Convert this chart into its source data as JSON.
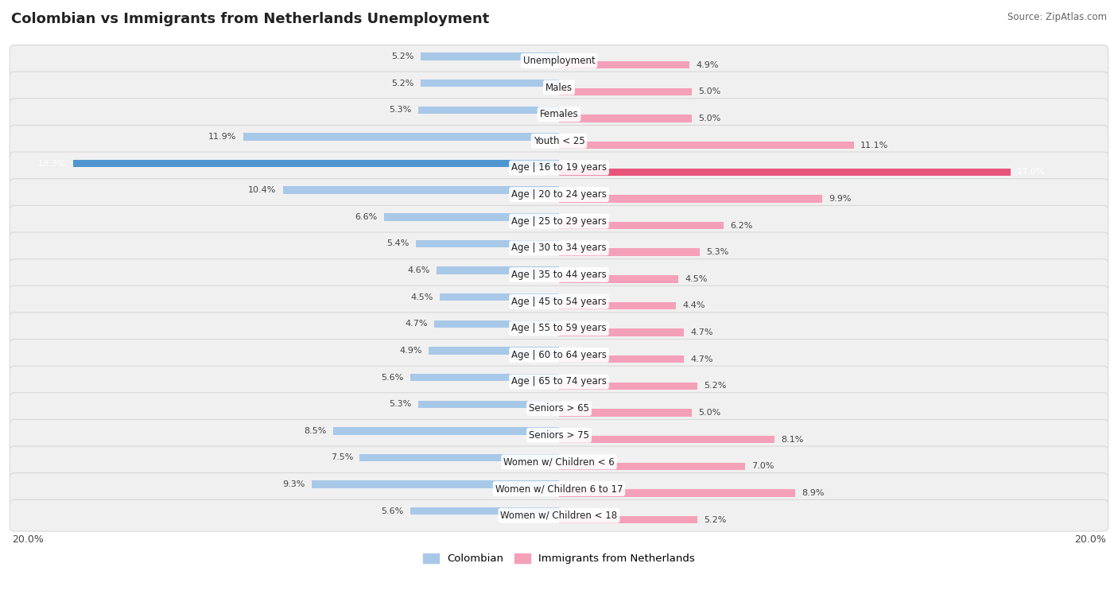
{
  "title": "Colombian vs Immigrants from Netherlands Unemployment",
  "source": "Source: ZipAtlas.com",
  "categories": [
    "Unemployment",
    "Males",
    "Females",
    "Youth < 25",
    "Age | 16 to 19 years",
    "Age | 20 to 24 years",
    "Age | 25 to 29 years",
    "Age | 30 to 34 years",
    "Age | 35 to 44 years",
    "Age | 45 to 54 years",
    "Age | 55 to 59 years",
    "Age | 60 to 64 years",
    "Age | 65 to 74 years",
    "Seniors > 65",
    "Seniors > 75",
    "Women w/ Children < 6",
    "Women w/ Children 6 to 17",
    "Women w/ Children < 18"
  ],
  "colombian": [
    5.2,
    5.2,
    5.3,
    11.9,
    18.3,
    10.4,
    6.6,
    5.4,
    4.6,
    4.5,
    4.7,
    4.9,
    5.6,
    5.3,
    8.5,
    7.5,
    9.3,
    5.6
  ],
  "netherlands": [
    4.9,
    5.0,
    5.0,
    11.1,
    17.0,
    9.9,
    6.2,
    5.3,
    4.5,
    4.4,
    4.7,
    4.7,
    5.2,
    5.0,
    8.1,
    7.0,
    8.9,
    5.2
  ],
  "colombian_color": "#a8c8e8",
  "netherlands_color": "#f4a0b8",
  "highlight_colombian": "#4f96d0",
  "highlight_netherlands": "#e8547a",
  "axis_max": 20.0,
  "legend_colombian": "Colombian",
  "legend_netherlands": "Immigrants from Netherlands",
  "title_fontsize": 13,
  "label_fontsize": 8.5,
  "value_fontsize": 8.0
}
